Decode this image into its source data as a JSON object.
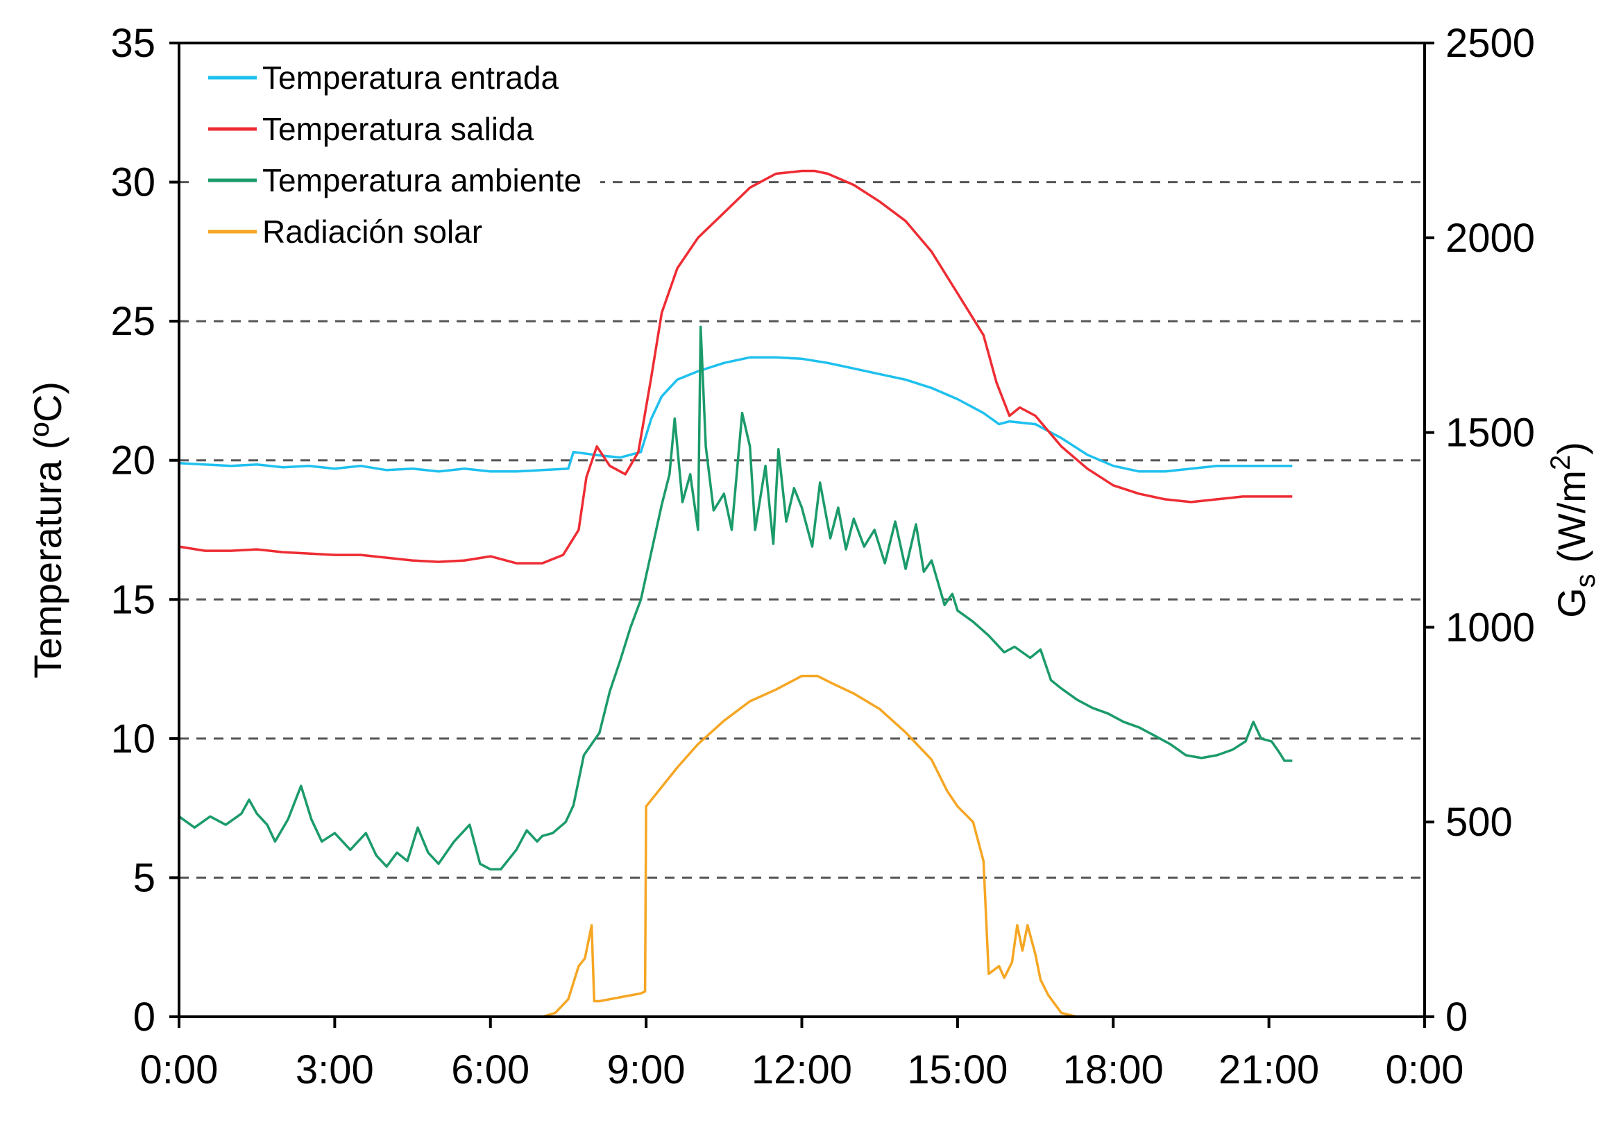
{
  "chart_data": {
    "type": "line",
    "title": "",
    "xlabel": "",
    "ylabel": "Temperatura (ºC)",
    "y2label": {
      "base": "G",
      "sub": "s",
      "unit_pre": " (W/m",
      "sup": "2",
      "unit_post": ")"
    },
    "xlim": [
      0,
      24
    ],
    "ylim": [
      0,
      35
    ],
    "y2lim": [
      0,
      2500
    ],
    "x_ticks": [
      0,
      3,
      6,
      9,
      12,
      15,
      18,
      21,
      24
    ],
    "x_tick_labels": [
      "0:00",
      "3:00",
      "6:00",
      "9:00",
      "12:00",
      "15:00",
      "18:00",
      "21:00",
      "0:00"
    ],
    "y_ticks": [
      0,
      5,
      10,
      15,
      20,
      25,
      30,
      35
    ],
    "y_tick_labels": [
      "0",
      "5",
      "10",
      "15",
      "20",
      "25",
      "30",
      "35"
    ],
    "y2_ticks": [
      0,
      500,
      1000,
      1500,
      2000,
      2500
    ],
    "y2_tick_labels": [
      "0",
      "500",
      "1000",
      "1500",
      "2000",
      "2500"
    ],
    "gridlines_y": [
      5,
      10,
      15,
      20,
      25,
      30
    ],
    "legend_position": "top-left",
    "series": [
      {
        "name": "Temperatura entrada",
        "color": "#1ec0ee",
        "axis": "left",
        "points": [
          [
            0,
            19.9
          ],
          [
            0.5,
            19.85
          ],
          [
            1,
            19.8
          ],
          [
            1.5,
            19.85
          ],
          [
            2,
            19.75
          ],
          [
            2.5,
            19.8
          ],
          [
            3,
            19.7
          ],
          [
            3.5,
            19.8
          ],
          [
            4,
            19.65
          ],
          [
            4.5,
            19.7
          ],
          [
            5,
            19.6
          ],
          [
            5.5,
            19.7
          ],
          [
            6,
            19.6
          ],
          [
            6.5,
            19.6
          ],
          [
            7,
            19.65
          ],
          [
            7.5,
            19.7
          ],
          [
            7.6,
            20.3
          ],
          [
            8,
            20.2
          ],
          [
            8.5,
            20.1
          ],
          [
            8.9,
            20.3
          ],
          [
            9.1,
            21.5
          ],
          [
            9.3,
            22.3
          ],
          [
            9.6,
            22.9
          ],
          [
            10,
            23.2
          ],
          [
            10.5,
            23.5
          ],
          [
            11,
            23.7
          ],
          [
            11.5,
            23.7
          ],
          [
            12,
            23.65
          ],
          [
            12.5,
            23.5
          ],
          [
            13,
            23.3
          ],
          [
            13.5,
            23.1
          ],
          [
            14,
            22.9
          ],
          [
            14.5,
            22.6
          ],
          [
            15,
            22.2
          ],
          [
            15.5,
            21.7
          ],
          [
            15.8,
            21.3
          ],
          [
            16,
            21.4
          ],
          [
            16.5,
            21.3
          ],
          [
            17,
            20.8
          ],
          [
            17.5,
            20.2
          ],
          [
            18,
            19.8
          ],
          [
            18.5,
            19.6
          ],
          [
            19,
            19.6
          ],
          [
            19.5,
            19.7
          ],
          [
            20,
            19.8
          ],
          [
            20.5,
            19.8
          ],
          [
            21,
            19.8
          ],
          [
            21.45,
            19.8
          ]
        ]
      },
      {
        "name": "Temperatura salida",
        "color": "#ee2c33",
        "axis": "left",
        "points": [
          [
            0,
            16.9
          ],
          [
            0.5,
            16.75
          ],
          [
            1,
            16.75
          ],
          [
            1.5,
            16.8
          ],
          [
            2,
            16.7
          ],
          [
            2.5,
            16.65
          ],
          [
            3,
            16.6
          ],
          [
            3.5,
            16.6
          ],
          [
            4,
            16.5
          ],
          [
            4.5,
            16.4
          ],
          [
            5,
            16.35
          ],
          [
            5.5,
            16.4
          ],
          [
            6,
            16.55
          ],
          [
            6.5,
            16.3
          ],
          [
            7,
            16.3
          ],
          [
            7.4,
            16.6
          ],
          [
            7.7,
            17.5
          ],
          [
            7.85,
            19.4
          ],
          [
            8.05,
            20.5
          ],
          [
            8.3,
            19.8
          ],
          [
            8.6,
            19.5
          ],
          [
            8.85,
            20.3
          ],
          [
            9.1,
            23.0
          ],
          [
            9.3,
            25.3
          ],
          [
            9.6,
            26.9
          ],
          [
            10,
            28.0
          ],
          [
            10.5,
            28.9
          ],
          [
            11,
            29.8
          ],
          [
            11.5,
            30.3
          ],
          [
            12,
            30.4
          ],
          [
            12.25,
            30.4
          ],
          [
            12.5,
            30.3
          ],
          [
            13,
            29.9
          ],
          [
            13.5,
            29.3
          ],
          [
            14,
            28.6
          ],
          [
            14.5,
            27.5
          ],
          [
            15,
            26.0
          ],
          [
            15.5,
            24.5
          ],
          [
            15.75,
            22.8
          ],
          [
            16,
            21.6
          ],
          [
            16.2,
            21.9
          ],
          [
            16.5,
            21.6
          ],
          [
            17,
            20.5
          ],
          [
            17.5,
            19.7
          ],
          [
            18,
            19.1
          ],
          [
            18.5,
            18.8
          ],
          [
            19,
            18.6
          ],
          [
            19.5,
            18.5
          ],
          [
            20,
            18.6
          ],
          [
            20.5,
            18.7
          ],
          [
            21,
            18.7
          ],
          [
            21.45,
            18.7
          ]
        ]
      },
      {
        "name": "Temperatura ambiente",
        "color": "#1b9b6a",
        "axis": "left",
        "points": [
          [
            0,
            7.2
          ],
          [
            0.3,
            6.8
          ],
          [
            0.6,
            7.2
          ],
          [
            0.9,
            6.9
          ],
          [
            1.2,
            7.3
          ],
          [
            1.35,
            7.8
          ],
          [
            1.5,
            7.3
          ],
          [
            1.7,
            6.9
          ],
          [
            1.85,
            6.3
          ],
          [
            2.1,
            7.1
          ],
          [
            2.35,
            8.3
          ],
          [
            2.55,
            7.1
          ],
          [
            2.75,
            6.3
          ],
          [
            3.0,
            6.6
          ],
          [
            3.3,
            6.0
          ],
          [
            3.6,
            6.6
          ],
          [
            3.8,
            5.8
          ],
          [
            4.0,
            5.4
          ],
          [
            4.2,
            5.9
          ],
          [
            4.4,
            5.6
          ],
          [
            4.6,
            6.8
          ],
          [
            4.8,
            5.9
          ],
          [
            5.0,
            5.5
          ],
          [
            5.3,
            6.3
          ],
          [
            5.6,
            6.9
          ],
          [
            5.8,
            5.5
          ],
          [
            6.0,
            5.3
          ],
          [
            6.2,
            5.3
          ],
          [
            6.5,
            6.0
          ],
          [
            6.7,
            6.7
          ],
          [
            6.9,
            6.3
          ],
          [
            7.0,
            6.5
          ],
          [
            7.2,
            6.6
          ],
          [
            7.45,
            7.0
          ],
          [
            7.6,
            7.6
          ],
          [
            7.8,
            9.4
          ],
          [
            8.1,
            10.2
          ],
          [
            8.3,
            11.7
          ],
          [
            8.5,
            12.8
          ],
          [
            8.7,
            14.0
          ],
          [
            8.9,
            15.0
          ],
          [
            9.1,
            16.7
          ],
          [
            9.3,
            18.4
          ],
          [
            9.45,
            19.5
          ],
          [
            9.55,
            21.5
          ],
          [
            9.7,
            18.5
          ],
          [
            9.85,
            19.5
          ],
          [
            10.0,
            17.5
          ],
          [
            10.05,
            24.8
          ],
          [
            10.15,
            20.5
          ],
          [
            10.3,
            18.2
          ],
          [
            10.5,
            18.8
          ],
          [
            10.65,
            17.5
          ],
          [
            10.85,
            21.7
          ],
          [
            11.0,
            20.5
          ],
          [
            11.1,
            17.5
          ],
          [
            11.3,
            19.8
          ],
          [
            11.45,
            17.0
          ],
          [
            11.55,
            20.4
          ],
          [
            11.7,
            17.8
          ],
          [
            11.85,
            19.0
          ],
          [
            12.0,
            18.3
          ],
          [
            12.2,
            16.9
          ],
          [
            12.35,
            19.2
          ],
          [
            12.55,
            17.2
          ],
          [
            12.7,
            18.3
          ],
          [
            12.85,
            16.8
          ],
          [
            13.0,
            17.9
          ],
          [
            13.2,
            16.9
          ],
          [
            13.4,
            17.5
          ],
          [
            13.6,
            16.3
          ],
          [
            13.8,
            17.8
          ],
          [
            14.0,
            16.1
          ],
          [
            14.2,
            17.7
          ],
          [
            14.35,
            16.0
          ],
          [
            14.5,
            16.4
          ],
          [
            14.75,
            14.8
          ],
          [
            14.9,
            15.2
          ],
          [
            15.0,
            14.6
          ],
          [
            15.3,
            14.2
          ],
          [
            15.6,
            13.7
          ],
          [
            15.9,
            13.1
          ],
          [
            16.1,
            13.3
          ],
          [
            16.4,
            12.9
          ],
          [
            16.6,
            13.2
          ],
          [
            16.8,
            12.1
          ],
          [
            17.0,
            11.8
          ],
          [
            17.3,
            11.4
          ],
          [
            17.6,
            11.1
          ],
          [
            17.9,
            10.9
          ],
          [
            18.2,
            10.6
          ],
          [
            18.5,
            10.4
          ],
          [
            18.8,
            10.1
          ],
          [
            19.1,
            9.8
          ],
          [
            19.4,
            9.4
          ],
          [
            19.7,
            9.3
          ],
          [
            20.0,
            9.4
          ],
          [
            20.3,
            9.6
          ],
          [
            20.55,
            9.9
          ],
          [
            20.7,
            10.6
          ],
          [
            20.85,
            10.0
          ],
          [
            21.05,
            9.9
          ],
          [
            21.2,
            9.5
          ],
          [
            21.3,
            9.2
          ],
          [
            21.45,
            9.2
          ]
        ]
      },
      {
        "name": "Radiación solar",
        "color": "#f5a623",
        "axis": "right",
        "points": [
          [
            0,
            0
          ],
          [
            7.0,
            0
          ],
          [
            7.25,
            10
          ],
          [
            7.5,
            45
          ],
          [
            7.7,
            130
          ],
          [
            7.82,
            150
          ],
          [
            7.95,
            235
          ],
          [
            8.0,
            40
          ],
          [
            8.1,
            40
          ],
          [
            8.5,
            50
          ],
          [
            8.9,
            60
          ],
          [
            8.98,
            65
          ],
          [
            9.0,
            540
          ],
          [
            9.3,
            590
          ],
          [
            9.6,
            640
          ],
          [
            10.0,
            700
          ],
          [
            10.5,
            760
          ],
          [
            11.0,
            810
          ],
          [
            11.5,
            840
          ],
          [
            12.0,
            875
          ],
          [
            12.3,
            875
          ],
          [
            12.6,
            855
          ],
          [
            13.0,
            830
          ],
          [
            13.5,
            790
          ],
          [
            14.0,
            730
          ],
          [
            14.5,
            660
          ],
          [
            14.8,
            580
          ],
          [
            15.0,
            540
          ],
          [
            15.3,
            500
          ],
          [
            15.5,
            400
          ],
          [
            15.6,
            110
          ],
          [
            15.8,
            130
          ],
          [
            15.9,
            100
          ],
          [
            16.05,
            140
          ],
          [
            16.15,
            235
          ],
          [
            16.25,
            170
          ],
          [
            16.35,
            235
          ],
          [
            16.5,
            160
          ],
          [
            16.6,
            95
          ],
          [
            16.75,
            55
          ],
          [
            17.0,
            10
          ],
          [
            17.3,
            0
          ],
          [
            21.45,
            0
          ]
        ]
      }
    ]
  }
}
